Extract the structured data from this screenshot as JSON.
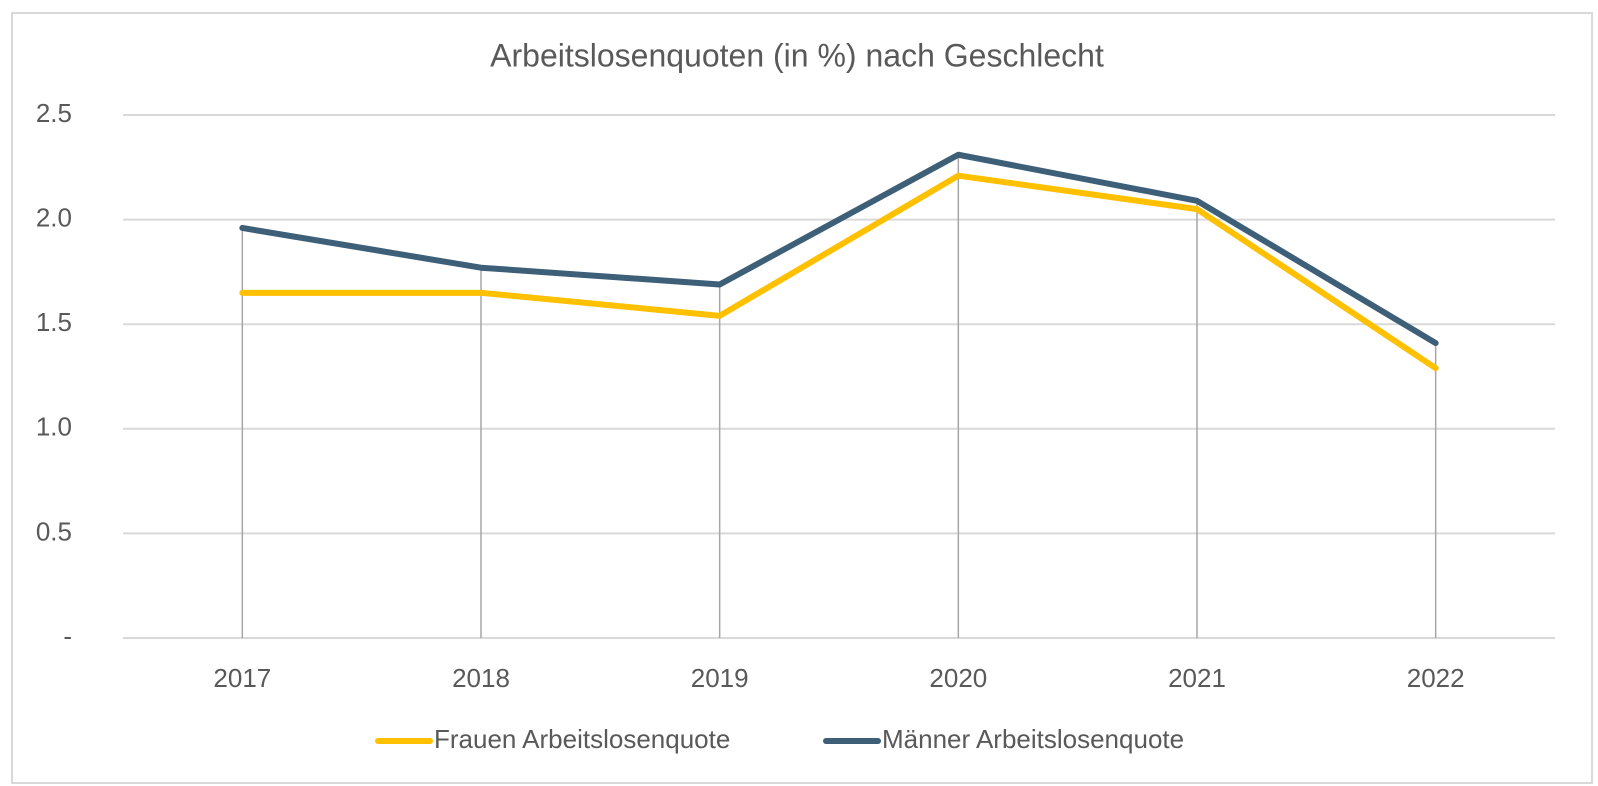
{
  "chart_data": {
    "type": "line",
    "title": "Arbeitslosenquoten (in %) nach Geschlecht",
    "categories": [
      "2017",
      "2018",
      "2019",
      "2020",
      "2021",
      "2022"
    ],
    "series": [
      {
        "name": "Frauen Arbeitslosenquote",
        "color": "#ffc000",
        "values": [
          1.65,
          1.65,
          1.54,
          2.21,
          2.05,
          1.29
        ]
      },
      {
        "name": "Männer Arbeitslosenquote",
        "color": "#3e5f78",
        "values": [
          1.96,
          1.77,
          1.69,
          2.31,
          2.09,
          1.41
        ]
      }
    ],
    "ylim": [
      0,
      2.5
    ],
    "yticks": [
      {
        "value": 0,
        "label": "-"
      },
      0.5,
      {
        "value": 1,
        "label": "1.0"
      },
      1.5,
      {
        "value": 2,
        "label": "2.0"
      },
      2.5
    ],
    "grid": true,
    "drop_lines": true,
    "legend": "bottom"
  }
}
